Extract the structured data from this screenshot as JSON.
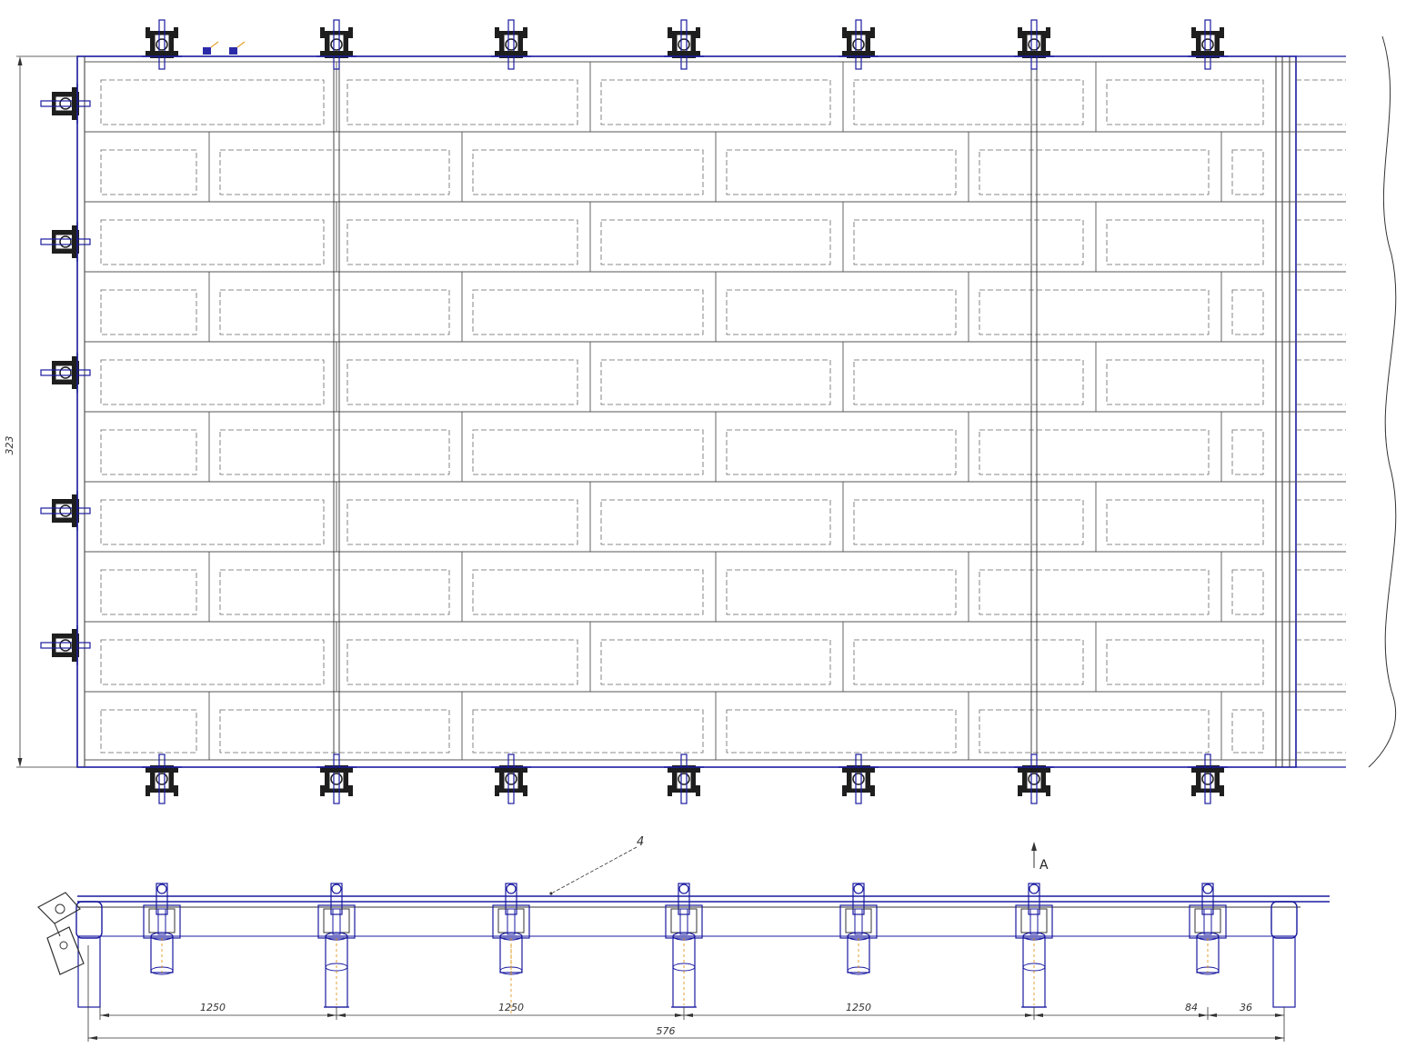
{
  "drawing": {
    "colors": {
      "outline": "#1a1aa0",
      "line": "#333333",
      "hidden": "#555555",
      "fill_dark": "#1e1e1e",
      "accent": "#e08a00"
    },
    "plan_view": {
      "overall_height_dim": "323",
      "roller_icon": "roller-bracket-icon"
    },
    "side_view": {
      "callout_number": "4",
      "section_mark": "A",
      "dimensions": {
        "span_1": "1250",
        "span_2": "1250",
        "span_3": "1250",
        "small_1": "84",
        "small_2": "36",
        "overall": "576"
      }
    }
  }
}
